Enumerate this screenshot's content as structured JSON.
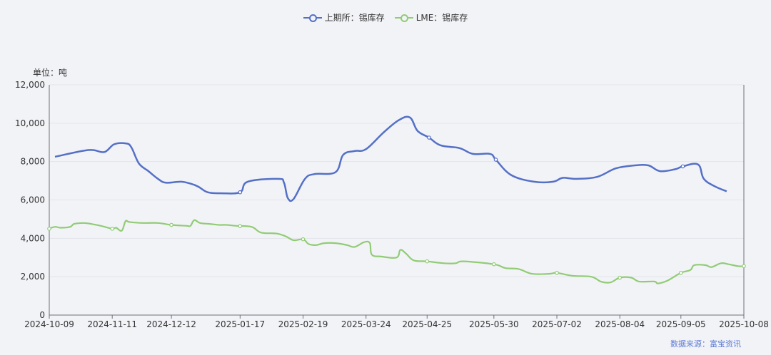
{
  "chart_data": {
    "type": "line",
    "unit_label": "单位：吨",
    "source": "数据来源：富宝资讯",
    "ylim": [
      0,
      12000
    ],
    "y_ticks": [
      "0",
      "2,000",
      "4,000",
      "6,000",
      "8,000",
      "10,000",
      "12,000"
    ],
    "y_tick_values": [
      0,
      2000,
      4000,
      6000,
      8000,
      10000,
      12000
    ],
    "x_range": [
      "2024-10-09",
      "2025-10-08"
    ],
    "x_ticks": [
      "2024-10-09",
      "2024-11-11",
      "2024-12-12",
      "2025-01-17",
      "2025-02-19",
      "2025-03-24",
      "2025-04-25",
      "2025-05-30",
      "2025-07-02",
      "2025-08-04",
      "2025-09-05",
      "2025-10-08"
    ],
    "grid": "horizontal",
    "legend_position": "top-center",
    "series": [
      {
        "name": "上期所：锡库存",
        "color": "#5470c6",
        "points": [
          [
            "2024-10-12",
            8250
          ],
          [
            "2024-10-26",
            8550
          ],
          [
            "2024-11-01",
            8600
          ],
          [
            "2024-11-07",
            8500
          ],
          [
            "2024-11-12",
            8900
          ],
          [
            "2024-11-18",
            8950
          ],
          [
            "2024-11-21",
            8750
          ],
          [
            "2024-11-25",
            7900
          ],
          [
            "2024-11-30",
            7500
          ],
          [
            "2024-12-05",
            7100
          ],
          [
            "2024-12-09",
            6900
          ],
          [
            "2024-12-17",
            6950
          ],
          [
            "2024-12-22",
            6850
          ],
          [
            "2024-12-26",
            6700
          ],
          [
            "2024-12-31",
            6400
          ],
          [
            "2025-01-07",
            6350
          ],
          [
            "2025-01-17",
            6400
          ],
          [
            "2025-01-21",
            6950
          ],
          [
            "2025-02-06",
            7100
          ],
          [
            "2025-02-09",
            6900
          ],
          [
            "2025-02-11",
            6100
          ],
          [
            "2025-02-14",
            6050
          ],
          [
            "2025-02-20",
            7100
          ],
          [
            "2025-02-25",
            7350
          ],
          [
            "2025-03-08",
            7450
          ],
          [
            "2025-03-12",
            8350
          ],
          [
            "2025-03-18",
            8550
          ],
          [
            "2025-03-24",
            8650
          ],
          [
            "2025-04-02",
            9500
          ],
          [
            "2025-04-10",
            10150
          ],
          [
            "2025-04-16",
            10300
          ],
          [
            "2025-04-20",
            9600
          ],
          [
            "2025-04-26",
            9250
          ],
          [
            "2025-05-02",
            8850
          ],
          [
            "2025-05-12",
            8700
          ],
          [
            "2025-05-19",
            8400
          ],
          [
            "2025-05-28",
            8400
          ],
          [
            "2025-05-31",
            8100
          ],
          [
            "2025-06-08",
            7300
          ],
          [
            "2025-06-20",
            6950
          ],
          [
            "2025-06-30",
            6950
          ],
          [
            "2025-07-05",
            7150
          ],
          [
            "2025-07-12",
            7100
          ],
          [
            "2025-07-23",
            7200
          ],
          [
            "2025-08-02",
            7650
          ],
          [
            "2025-08-12",
            7800
          ],
          [
            "2025-08-19",
            7800
          ],
          [
            "2025-08-25",
            7500
          ],
          [
            "2025-09-02",
            7600
          ],
          [
            "2025-09-06",
            7750
          ],
          [
            "2025-09-14",
            7850
          ],
          [
            "2025-09-17",
            7100
          ],
          [
            "2025-09-23",
            6700
          ],
          [
            "2025-09-29",
            6450
          ]
        ],
        "markers": [
          "2025-01-17",
          "2025-04-26",
          "2025-05-31",
          "2025-09-06"
        ]
      },
      {
        "name": "LME：锡库存",
        "color": "#91cc75",
        "points": [
          [
            "2024-10-09",
            4500
          ],
          [
            "2024-10-12",
            4600
          ],
          [
            "2024-10-15",
            4550
          ],
          [
            "2024-10-20",
            4600
          ],
          [
            "2024-10-22",
            4750
          ],
          [
            "2024-10-27",
            4800
          ],
          [
            "2024-10-31",
            4750
          ],
          [
            "2024-11-05",
            4650
          ],
          [
            "2024-11-11",
            4500
          ],
          [
            "2024-11-13",
            4550
          ],
          [
            "2024-11-16",
            4400
          ],
          [
            "2024-11-18",
            4900
          ],
          [
            "2024-11-20",
            4850
          ],
          [
            "2024-11-27",
            4800
          ],
          [
            "2024-12-05",
            4800
          ],
          [
            "2024-12-12",
            4700
          ],
          [
            "2024-12-20",
            4650
          ],
          [
            "2024-12-22",
            4650
          ],
          [
            "2024-12-24",
            4950
          ],
          [
            "2024-12-27",
            4800
          ],
          [
            "2025-01-01",
            4750
          ],
          [
            "2025-01-06",
            4700
          ],
          [
            "2025-01-10",
            4700
          ],
          [
            "2025-01-15",
            4650
          ],
          [
            "2025-01-23",
            4600
          ],
          [
            "2025-01-28",
            4300
          ],
          [
            "2025-02-05",
            4250
          ],
          [
            "2025-02-10",
            4100
          ],
          [
            "2025-02-14",
            3900
          ],
          [
            "2025-02-19",
            3950
          ],
          [
            "2025-02-22",
            3700
          ],
          [
            "2025-02-26",
            3650
          ],
          [
            "2025-03-02",
            3750
          ],
          [
            "2025-03-08",
            3750
          ],
          [
            "2025-03-14",
            3650
          ],
          [
            "2025-03-18",
            3550
          ],
          [
            "2025-03-23",
            3800
          ],
          [
            "2025-03-26",
            3750
          ],
          [
            "2025-03-27",
            3150
          ],
          [
            "2025-04-01",
            3050
          ],
          [
            "2025-04-09",
            3000
          ],
          [
            "2025-04-11",
            3400
          ],
          [
            "2025-04-14",
            3200
          ],
          [
            "2025-04-18",
            2850
          ],
          [
            "2025-04-25",
            2800
          ],
          [
            "2025-05-04",
            2700
          ],
          [
            "2025-05-10",
            2700
          ],
          [
            "2025-05-14",
            2800
          ],
          [
            "2025-05-30",
            2650
          ],
          [
            "2025-06-05",
            2450
          ],
          [
            "2025-06-12",
            2400
          ],
          [
            "2025-06-19",
            2150
          ],
          [
            "2025-06-28",
            2150
          ],
          [
            "2025-07-02",
            2200
          ],
          [
            "2025-07-10",
            2050
          ],
          [
            "2025-07-20",
            2000
          ],
          [
            "2025-07-25",
            1750
          ],
          [
            "2025-07-30",
            1700
          ],
          [
            "2025-08-04",
            1950
          ],
          [
            "2025-08-10",
            1950
          ],
          [
            "2025-08-14",
            1750
          ],
          [
            "2025-08-22",
            1750
          ],
          [
            "2025-08-24",
            1650
          ],
          [
            "2025-08-29",
            1800
          ],
          [
            "2025-09-05",
            2200
          ],
          [
            "2025-09-10",
            2350
          ],
          [
            "2025-09-12",
            2600
          ],
          [
            "2025-09-18",
            2600
          ],
          [
            "2025-09-21",
            2500
          ],
          [
            "2025-09-26",
            2700
          ],
          [
            "2025-09-30",
            2650
          ],
          [
            "2025-10-05",
            2550
          ],
          [
            "2025-10-08",
            2550
          ]
        ],
        "markers": [
          "2024-10-09",
          "2024-11-11",
          "2024-12-12",
          "2025-01-17",
          "2025-02-19",
          "2025-04-25",
          "2025-05-30",
          "2025-07-02",
          "2025-08-04",
          "2025-09-05",
          "2025-10-08"
        ]
      }
    ]
  }
}
